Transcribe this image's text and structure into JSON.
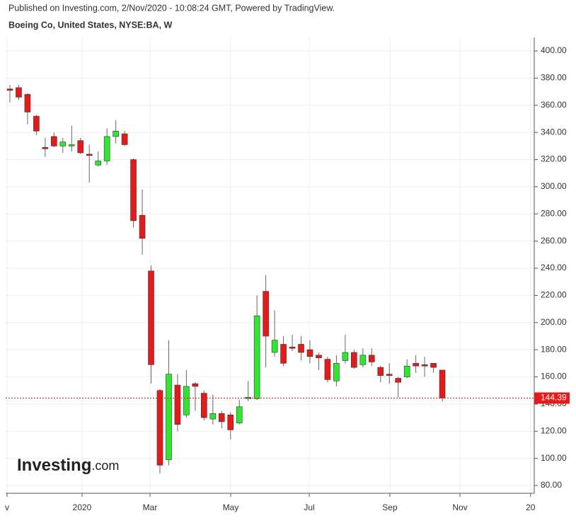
{
  "chart_data": {
    "type": "candlestick",
    "title": "Boeing Co, United States, NYSE:BA, W",
    "subtitle": "Published on Investing.com, 2/Nov/2020 - 10:08:24 GMT, Powered by TradingView.",
    "watermark": [
      "Investing",
      ".com"
    ],
    "categories": [
      null,
      null,
      null,
      null,
      null,
      null,
      null,
      null,
      null,
      null,
      null,
      null,
      null,
      null,
      null,
      null,
      null,
      null,
      null,
      null,
      null,
      null,
      null,
      null,
      null,
      null,
      null,
      null,
      null,
      null,
      null,
      null,
      null,
      null,
      null,
      null,
      null,
      null,
      null,
      null,
      null,
      null,
      null,
      null,
      null,
      null,
      null,
      null,
      null,
      null
    ],
    "open": [
      372,
      373,
      368,
      352,
      329,
      337,
      330,
      330,
      334,
      324,
      316,
      319,
      337,
      339,
      320,
      279,
      238,
      150,
      99,
      154,
      132,
      155,
      148,
      129,
      133,
      132,
      126,
      144,
      144,
      223,
      178,
      184,
      182,
      184,
      180,
      176,
      173,
      157,
      172,
      178,
      169,
      176,
      167,
      162,
      159,
      160,
      170,
      169,
      170,
      165
    ],
    "high": [
      375,
      375,
      369,
      353,
      336,
      340,
      336,
      345,
      336,
      331,
      326,
      343,
      349,
      341,
      321,
      298,
      242,
      151,
      187,
      162,
      165,
      156,
      150,
      147,
      135,
      134,
      143,
      157,
      220,
      235,
      209,
      190,
      191,
      190,
      187,
      178,
      175,
      176,
      191,
      180,
      181,
      181,
      168,
      170,
      160,
      173,
      176,
      175,
      170,
      165
    ],
    "low": [
      362,
      364,
      346,
      338,
      322,
      329,
      325,
      326,
      324,
      303,
      315,
      316,
      332,
      330,
      270,
      250,
      155,
      89,
      95,
      120,
      130,
      135,
      128,
      125,
      122,
      114,
      125,
      142,
      143,
      167,
      175,
      168,
      179,
      172,
      170,
      165,
      156,
      153,
      170,
      166,
      167,
      168,
      156,
      155,
      145,
      159,
      163,
      160,
      163,
      142
    ],
    "close": [
      371,
      366,
      355,
      341,
      328,
      330,
      333,
      331,
      325,
      323,
      319,
      337,
      341,
      331,
      275,
      262,
      169,
      95,
      162,
      125,
      153,
      153,
      130,
      133,
      127,
      121,
      138,
      145,
      205,
      190,
      187,
      170,
      181,
      178,
      175,
      174,
      158,
      170,
      178,
      167,
      176,
      171,
      161,
      161,
      156,
      168,
      168,
      168,
      167,
      144.39
    ],
    "up_color": "#2ee82e",
    "down_color": "#e51a1a",
    "xlim": [
      -0.48,
      59.42
    ],
    "xticks": [
      {
        "value": -0.32,
        "label": "v"
      },
      {
        "value": 8.18,
        "label": "2020"
      },
      {
        "value": 15.88,
        "label": "Mar"
      },
      {
        "value": 25.02,
        "label": "May"
      },
      {
        "value": 33.92,
        "label": "Jul"
      },
      {
        "value": 43.06,
        "label": "Sep"
      },
      {
        "value": 51.0,
        "label": "Nov"
      },
      {
        "value": 59.0,
        "label": "20"
      }
    ],
    "ylim": [
      74.3,
      409.9
    ],
    "yticks": [
      {
        "value": 80,
        "label": "80.00"
      },
      {
        "value": 100,
        "label": "100.00"
      },
      {
        "value": 120,
        "label": "120.00"
      },
      {
        "value": 140,
        "label": "140.00"
      },
      {
        "value": 160,
        "label": "160.00"
      },
      {
        "value": 180,
        "label": "180.00"
      },
      {
        "value": 200,
        "label": "200.00"
      },
      {
        "value": 220,
        "label": "220.00"
      },
      {
        "value": 240,
        "label": "240.00"
      },
      {
        "value": 260,
        "label": "260.00"
      },
      {
        "value": 280,
        "label": "280.00"
      },
      {
        "value": 300,
        "label": "300.00"
      },
      {
        "value": 320,
        "label": "320.00"
      },
      {
        "value": 340,
        "label": "340.00"
      },
      {
        "value": 360,
        "label": "360.00"
      },
      {
        "value": 380,
        "label": "380.00"
      },
      {
        "value": 400,
        "label": "400.00"
      }
    ],
    "grid": true,
    "last_price_line": true,
    "last_price_color": "#e51a1a"
  }
}
